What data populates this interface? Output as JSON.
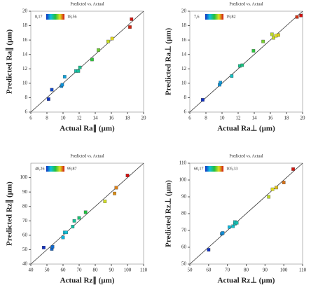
{
  "chart_data": [
    {
      "type": "scatter",
      "title": "Predicted vs. Actual",
      "xlabel": "Actual Ra∥ (µm)",
      "ylabel": "Predicted Ra∥ (µm)",
      "color_range": [
        {
          "value": 8.17,
          "label": "8,17"
        },
        {
          "value": 18.56,
          "label": "18,56"
        }
      ],
      "xlim": [
        6,
        20
      ],
      "ylim": [
        6,
        20
      ],
      "xticks": [
        6,
        8,
        10,
        12,
        14,
        16,
        18,
        20
      ],
      "yticks": [
        6,
        8,
        10,
        12,
        14,
        16,
        18,
        20
      ],
      "x": [
        8.2,
        8.6,
        9.8,
        9.9,
        10.2,
        11.6,
        11.9,
        12.1,
        13.6,
        14.4,
        15.6,
        16.1,
        18.3,
        18.5
      ],
      "values": [
        7.8,
        9.1,
        9.6,
        9.8,
        10.9,
        11.7,
        11.7,
        12.2,
        13.3,
        14.6,
        15.8,
        16.2,
        17.8,
        18.9
      ]
    },
    {
      "type": "scatter",
      "title": "Predicted vs. Actual",
      "xlabel": "Actual Ra⊥ (µm)",
      "ylabel": "Predicted Ra⊥ (µm)",
      "color_range": [
        {
          "value": 7.6,
          "label": "7,6"
        },
        {
          "value": 19.82,
          "label": "19,82"
        }
      ],
      "xlim": [
        6,
        20
      ],
      "ylim": [
        6,
        20
      ],
      "xticks": [
        6,
        8,
        10,
        12,
        14,
        16,
        18,
        20
      ],
      "yticks": [
        6,
        8,
        10,
        12,
        14,
        16,
        18,
        20
      ],
      "x": [
        7.6,
        9.7,
        9.8,
        11.2,
        12.2,
        12.5,
        13.9,
        15.1,
        16.2,
        16.4,
        16.7,
        17.0,
        19.3,
        19.8
      ],
      "values": [
        7.7,
        9.8,
        10.1,
        11.0,
        12.4,
        12.5,
        14.5,
        15.8,
        16.8,
        16.3,
        16.6,
        16.7,
        19.2,
        19.4
      ]
    },
    {
      "type": "scatter",
      "title": "Predicted vs. Actual",
      "xlabel": "Actual Rz∥ (µm)",
      "ylabel": "Predicted Rz∥ (µm)",
      "color_range": [
        {
          "value": 48.26,
          "label": "48,26"
        },
        {
          "value": 99.87,
          "label": "99,87"
        }
      ],
      "xlim": [
        40,
        110
      ],
      "ylim": [
        40,
        110
      ],
      "xticks": [
        40,
        50,
        60,
        70,
        80,
        90,
        100,
        110
      ],
      "yticks": [
        40,
        50,
        60,
        70,
        80,
        90,
        100
      ],
      "x": [
        48,
        53,
        53.5,
        60,
        61,
        62,
        66,
        67,
        70,
        74,
        86,
        92,
        93,
        100
      ],
      "values": [
        51.5,
        50.5,
        52,
        58.5,
        62,
        62,
        66,
        70,
        72,
        76,
        83.5,
        89,
        93,
        101.5
      ]
    },
    {
      "type": "scatter",
      "title": "Predicted vs. Actual",
      "xlabel": "Actual Rz⊥ (µm)",
      "ylabel": "Predicted Rz⊥ (µm)",
      "color_range": [
        {
          "value": 60.17,
          "label": "60,17"
        },
        {
          "value": 105.33,
          "label": "105,33"
        }
      ],
      "xlim": [
        50,
        110
      ],
      "ylim": [
        50,
        110
      ],
      "xticks": [
        50,
        60,
        70,
        80,
        90,
        100,
        110
      ],
      "yticks": [
        50,
        60,
        70,
        80,
        90,
        100,
        110
      ],
      "x": [
        60,
        67,
        67.5,
        71,
        73,
        74,
        74,
        75,
        92,
        94,
        96,
        100,
        105
      ],
      "values": [
        58.5,
        68,
        68.5,
        72,
        72.5,
        74,
        75,
        74.5,
        90,
        94.5,
        95.5,
        98.5,
        106.5
      ]
    }
  ]
}
